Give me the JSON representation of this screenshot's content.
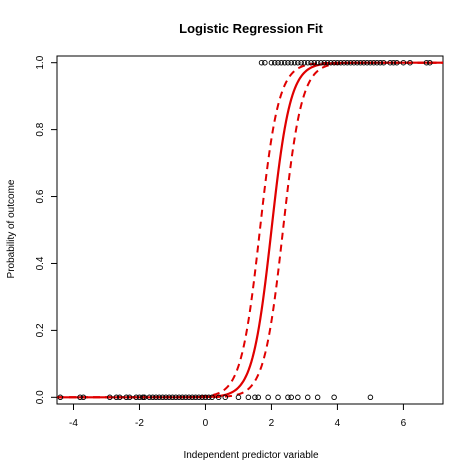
{
  "chart_data": {
    "type": "scatter",
    "title": "Logistic Regression Fit",
    "xlabel": "Independent predictor variable",
    "ylabel": "Probability of outcome",
    "xlim": [
      -4.5,
      7.2
    ],
    "ylim": [
      -0.02,
      1.02
    ],
    "x_ticks": [
      -4,
      -2,
      0,
      2,
      4,
      6
    ],
    "y_ticks": [
      0.0,
      0.2,
      0.4,
      0.6,
      0.8,
      1.0
    ],
    "x_tick_labels": [
      "-4",
      "-2",
      "0",
      "2",
      "4",
      "6"
    ],
    "y_tick_labels": [
      "0.0",
      "0.2",
      "0.4",
      "0.6",
      "0.8",
      "1.0"
    ],
    "grid": false,
    "colors": {
      "points": "#000000",
      "fit": "#e00000",
      "frame": "#000000"
    },
    "points_outcome_0": [
      -4.4,
      -3.8,
      -3.7,
      -2.9,
      -2.7,
      -2.6,
      -2.4,
      -2.3,
      -2.1,
      -2.0,
      -1.9,
      -1.85,
      -1.7,
      -1.6,
      -1.5,
      -1.4,
      -1.3,
      -1.2,
      -1.1,
      -1.0,
      -0.9,
      -0.8,
      -0.7,
      -0.6,
      -0.5,
      -0.4,
      -0.3,
      -0.2,
      -0.1,
      0.0,
      0.1,
      0.2,
      0.4,
      0.6,
      1.0,
      1.3,
      1.5,
      1.6,
      1.9,
      2.2,
      2.5,
      2.6,
      2.8,
      3.1,
      3.4,
      3.9,
      5.0
    ],
    "points_outcome_1": [
      1.7,
      1.8,
      2.0,
      2.1,
      2.2,
      2.3,
      2.4,
      2.5,
      2.6,
      2.7,
      2.8,
      2.9,
      3.0,
      3.1,
      3.2,
      3.3,
      3.4,
      3.5,
      3.6,
      3.7,
      3.8,
      3.9,
      4.0,
      4.1,
      4.2,
      4.3,
      4.4,
      4.5,
      4.6,
      4.7,
      4.8,
      4.9,
      5.0,
      5.1,
      5.2,
      5.3,
      5.4,
      5.6,
      5.7,
      5.8,
      6.0,
      6.2,
      6.7,
      6.8
    ],
    "fit": {
      "intercept": -7.0,
      "slope": 3.5,
      "x_range": [
        -4.5,
        7.2
      ]
    },
    "confidence_band": {
      "lower_shift": 0.35,
      "upper_shift": -0.35
    }
  }
}
